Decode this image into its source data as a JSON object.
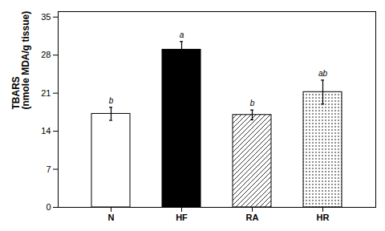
{
  "chart_data": {
    "type": "bar",
    "categories": [
      "N",
      "HF",
      "RA",
      "HR"
    ],
    "values": [
      17.2,
      29.0,
      17.0,
      21.2
    ],
    "errors": [
      1.2,
      1.5,
      0.9,
      2.2
    ],
    "annotations": [
      "b",
      "a",
      "b",
      "ab"
    ],
    "colors": [
      "white",
      "black",
      "white",
      "white"
    ],
    "ylabel": "TBARS\n(nmole MDA/g tissue)",
    "ylim": [
      0,
      36
    ],
    "yticks": [
      0,
      7,
      14,
      21,
      28,
      35
    ],
    "grid": false
  }
}
